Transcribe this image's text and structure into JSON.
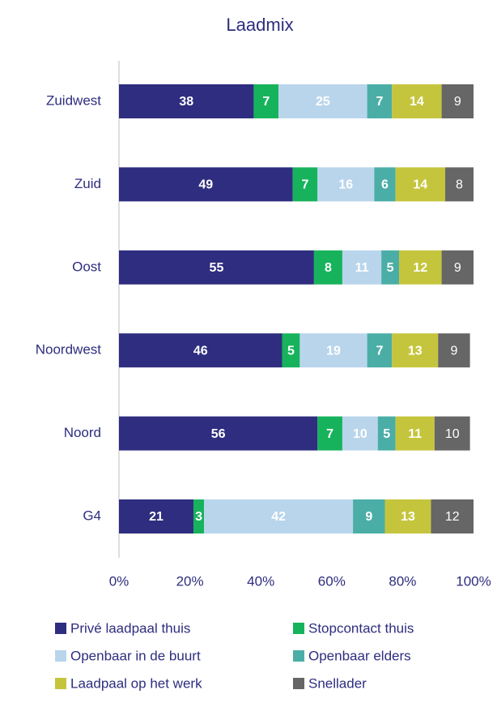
{
  "chart_data": {
    "type": "stacked_bar_horizontal",
    "title": "Laadmix",
    "categories": [
      "Zuidwest",
      "Zuid",
      "Oost",
      "Noordwest",
      "Noord",
      "G4"
    ],
    "series": [
      {
        "name": "Privé laadpaal thuis",
        "color": "#2e2d7f",
        "values": [
          38,
          49,
          55,
          46,
          56,
          21
        ]
      },
      {
        "name": "Stopcontact thuis",
        "color": "#17b35c",
        "values": [
          7,
          7,
          8,
          5,
          7,
          3
        ]
      },
      {
        "name": "Openbaar in de buurt",
        "color": "#b9d5ec",
        "values": [
          25,
          16,
          11,
          19,
          10,
          42
        ]
      },
      {
        "name": "Openbaar elders",
        "color": "#4baea6",
        "values": [
          7,
          6,
          5,
          7,
          5,
          9
        ]
      },
      {
        "name": "Laadpaal op het werk",
        "color": "#c5c53d",
        "values": [
          14,
          14,
          12,
          13,
          11,
          13
        ]
      },
      {
        "name": "Snellader",
        "color": "#666666",
        "values": [
          9,
          8,
          9,
          9,
          10,
          12
        ]
      }
    ],
    "xlim": [
      0,
      100
    ],
    "xticks": [
      {
        "value": 0,
        "label": "0%"
      },
      {
        "value": 20,
        "label": "20%"
      },
      {
        "value": 40,
        "label": "40%"
      },
      {
        "value": 60,
        "label": "60%"
      },
      {
        "value": 80,
        "label": "80%"
      },
      {
        "value": 100,
        "label": "100%"
      }
    ],
    "legend": "bottom"
  }
}
